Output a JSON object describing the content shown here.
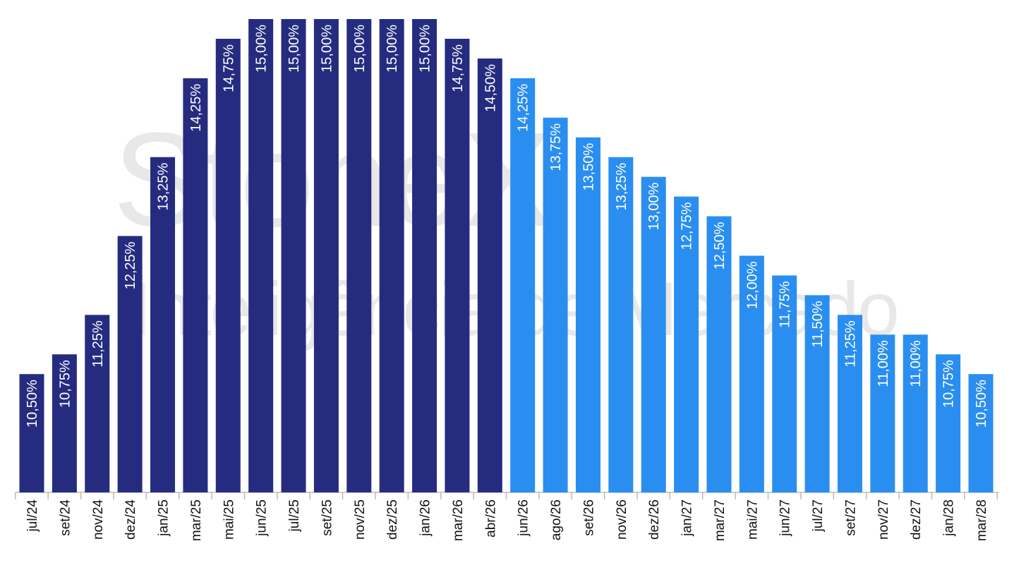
{
  "chart_data": {
    "type": "bar",
    "watermark": [
      "StoneX",
      "Inteligência de Mercado"
    ],
    "categories": [
      "jul/24",
      "set/24",
      "nov/24",
      "dez/24",
      "jan/25",
      "mar/25",
      "mai/25",
      "jun/25",
      "jul/25",
      "set/25",
      "nov/25",
      "dez/25",
      "jan/26",
      "mar/26",
      "abr/26",
      "jun/26",
      "ago/26",
      "set/26",
      "nov/26",
      "dez/26",
      "jan/27",
      "mar/27",
      "mai/27",
      "jun/27",
      "jul/27",
      "set/27",
      "nov/27",
      "dez/27",
      "jan/28",
      "mar/28"
    ],
    "values": [
      10.5,
      10.75,
      11.25,
      12.25,
      13.25,
      14.25,
      14.75,
      15,
      15,
      15,
      15,
      15,
      15,
      14.75,
      14.5,
      14.25,
      13.75,
      13.5,
      13.25,
      13,
      12.75,
      12.5,
      12,
      11.75,
      11.5,
      11.25,
      11,
      11,
      10.75,
      10.5
    ],
    "value_labels": [
      "10,50%",
      "10,75%",
      "11,25%",
      "12,25%",
      "13,25%",
      "14,25%",
      "14,75%",
      "15,00%",
      "15,00%",
      "15,00%",
      "15,00%",
      "15,00%",
      "15,00%",
      "14,75%",
      "14,50%",
      "14,25%",
      "13,75%",
      "13,50%",
      "13,25%",
      "13,00%",
      "12,75%",
      "12,50%",
      "12,00%",
      "11,75%",
      "11,50%",
      "11,25%",
      "11,00%",
      "11,00%",
      "10,75%",
      "10,50%"
    ],
    "colors": [
      "#252c80",
      "#252c80",
      "#252c80",
      "#252c80",
      "#252c80",
      "#252c80",
      "#252c80",
      "#252c80",
      "#252c80",
      "#252c80",
      "#252c80",
      "#252c80",
      "#252c80",
      "#252c80",
      "#252c80",
      "#2a8ef0",
      "#2a8ef0",
      "#2a8ef0",
      "#2a8ef0",
      "#2a8ef0",
      "#2a8ef0",
      "#2a8ef0",
      "#2a8ef0",
      "#2a8ef0",
      "#2a8ef0",
      "#2a8ef0",
      "#2a8ef0",
      "#2a8ef0",
      "#2a8ef0",
      "#2a8ef0"
    ],
    "ylim": [
      9,
      15
    ]
  }
}
